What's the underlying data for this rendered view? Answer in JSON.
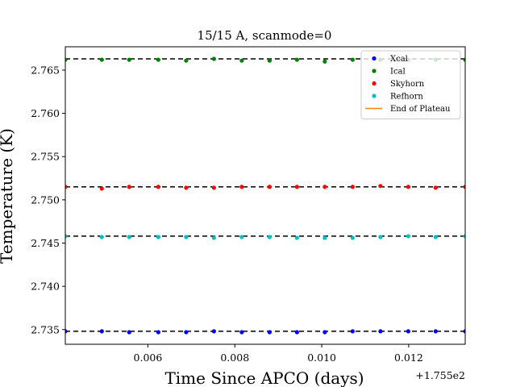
{
  "chart_data": {
    "type": "scatter",
    "title": "15/15 A, scanmode=0",
    "xlabel": "Time Since APCO (days)",
    "ylabel": "Temperature (K)",
    "x_offset_label": "+1.755e2",
    "x_offset": 175.5,
    "xlim": [
      0.0041,
      0.0133
    ],
    "ylim": [
      2.7333,
      2.7677
    ],
    "x_ticks": [
      0.006,
      0.008,
      0.01,
      0.012
    ],
    "x_tick_labels": [
      "0.006",
      "0.008",
      "0.010",
      "0.012"
    ],
    "y_ticks": [
      2.735,
      2.74,
      2.745,
      2.75,
      2.755,
      2.76,
      2.765
    ],
    "y_tick_labels": [
      "2.735",
      "2.740",
      "2.745",
      "2.750",
      "2.755",
      "2.760",
      "2.765"
    ],
    "legend_position": "top-right",
    "grid": false,
    "x": [
      0.0041,
      0.00494,
      0.00557,
      0.00624,
      0.00688,
      0.00752,
      0.00816,
      0.0088,
      0.00943,
      0.01007,
      0.01071,
      0.01135,
      0.01199,
      0.01262,
      0.0133
    ],
    "series": [
      {
        "name": "Xcal",
        "color": "#0000ff",
        "marker": "dot",
        "values": [
          2.7348,
          2.7348,
          2.7347,
          2.7347,
          2.7347,
          2.7348,
          2.7347,
          2.7347,
          2.7347,
          2.7347,
          2.7348,
          2.7348,
          2.7348,
          2.7348,
          2.7348
        ]
      },
      {
        "name": "Ical",
        "color": "#008000",
        "marker": "dot",
        "values": [
          2.7662,
          2.7662,
          2.7662,
          2.7662,
          2.7661,
          2.7663,
          2.7661,
          2.7661,
          2.7662,
          2.766,
          2.7662,
          2.7662,
          2.7662,
          2.7662,
          2.7662
        ]
      },
      {
        "name": "Skyhorn",
        "color": "#ff0000",
        "marker": "dot",
        "values": [
          2.7515,
          2.7513,
          2.7515,
          2.7515,
          2.7514,
          2.7514,
          2.7515,
          2.7515,
          2.7515,
          2.7515,
          2.7515,
          2.7516,
          2.7515,
          2.7514,
          2.7515
        ]
      },
      {
        "name": "Refhorn",
        "color": "#00bfbf",
        "marker": "dot",
        "values": [
          2.7458,
          2.7457,
          2.7457,
          2.7457,
          2.7457,
          2.7456,
          2.7457,
          2.7457,
          2.7456,
          2.7456,
          2.7456,
          2.7457,
          2.7458,
          2.7457,
          2.7458
        ]
      }
    ],
    "plateau_lines": [
      2.7348,
      2.7458,
      2.7515,
      2.7663
    ],
    "plateau_style": "black dashed",
    "legend_extra": {
      "name": "End of Plateau",
      "color": "#ff7f0e",
      "marker": "line"
    }
  }
}
